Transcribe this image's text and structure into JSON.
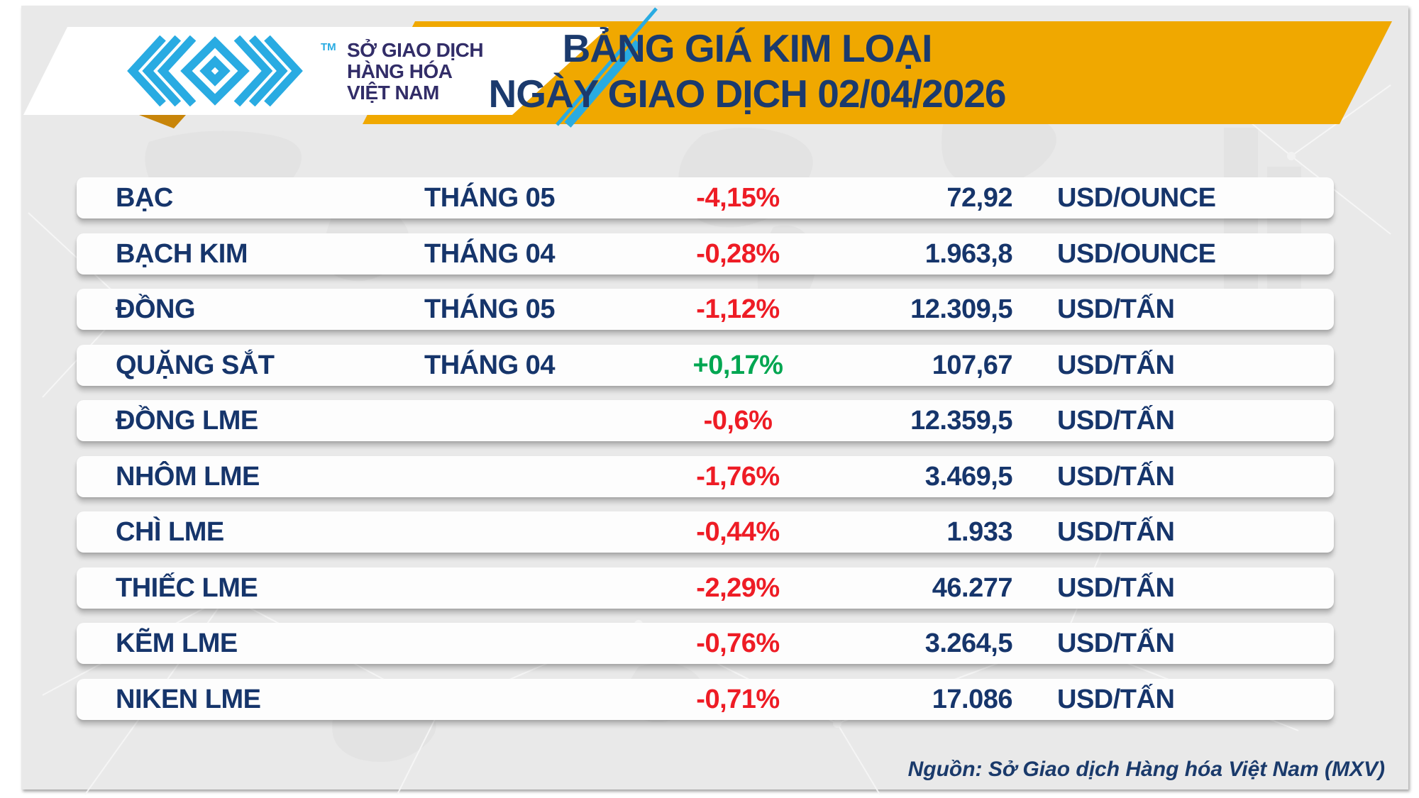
{
  "header": {
    "logo_lines": [
      "SỞ GIAO DỊCH",
      "HÀNG HÓA",
      "VIỆT NAM"
    ],
    "trademark": "TM"
  },
  "colors": {
    "banner_yellow": "#f0a800",
    "ribbon_fold_gold": "#c8850a",
    "navy": "#1b3a6d",
    "logo_indigo": "#322d68",
    "logo_cyan": "#29abe2",
    "negative_red": "#ee1c25",
    "positive_green": "#00a651",
    "panel_gray": "#e9e9e9",
    "row_white": "#fdfdfd"
  },
  "chart_data": {
    "type": "table",
    "title": "BẢNG GIÁ KIM LOẠI",
    "subtitle": "NGÀY GIAO DỊCH 02/04/2026",
    "columns": [
      "commodity",
      "contract_month",
      "change_pct",
      "price",
      "unit"
    ],
    "rows": [
      {
        "commodity": "BẠC",
        "contract_month": "THÁNG 05",
        "change_pct": "-4,15%",
        "direction": "down",
        "price": "72,92",
        "unit": "USD/OUNCE"
      },
      {
        "commodity": "BẠCH KIM",
        "contract_month": "THÁNG 04",
        "change_pct": "-0,28%",
        "direction": "down",
        "price": "1.963,8",
        "unit": "USD/OUNCE"
      },
      {
        "commodity": "ĐỒNG",
        "contract_month": "THÁNG 05",
        "change_pct": "-1,12%",
        "direction": "down",
        "price": "12.309,5",
        "unit": "USD/TẤN"
      },
      {
        "commodity": "QUẶNG SẮT",
        "contract_month": "THÁNG 04",
        "change_pct": "+0,17%",
        "direction": "up",
        "price": "107,67",
        "unit": "USD/TẤN"
      },
      {
        "commodity": "ĐỒNG LME",
        "contract_month": "",
        "change_pct": "-0,6%",
        "direction": "down",
        "price": "12.359,5",
        "unit": "USD/TẤN"
      },
      {
        "commodity": "NHÔM LME",
        "contract_month": "",
        "change_pct": "-1,76%",
        "direction": "down",
        "price": "3.469,5",
        "unit": "USD/TẤN"
      },
      {
        "commodity": "CHÌ LME",
        "contract_month": "",
        "change_pct": "-0,44%",
        "direction": "down",
        "price": "1.933",
        "unit": "USD/TẤN"
      },
      {
        "commodity": "THIẾC LME",
        "contract_month": "",
        "change_pct": "-2,29%",
        "direction": "down",
        "price": "46.277",
        "unit": "USD/TẤN"
      },
      {
        "commodity": "KẼM LME",
        "contract_month": "",
        "change_pct": "-0,76%",
        "direction": "down",
        "price": "3.264,5",
        "unit": "USD/TẤN"
      },
      {
        "commodity": "NIKEN LME",
        "contract_month": "",
        "change_pct": "-0,71%",
        "direction": "down",
        "price": "17.086",
        "unit": "USD/TẤN"
      }
    ]
  },
  "footer": {
    "source": "Nguồn: Sở Giao dịch Hàng hóa Việt Nam (MXV)"
  }
}
